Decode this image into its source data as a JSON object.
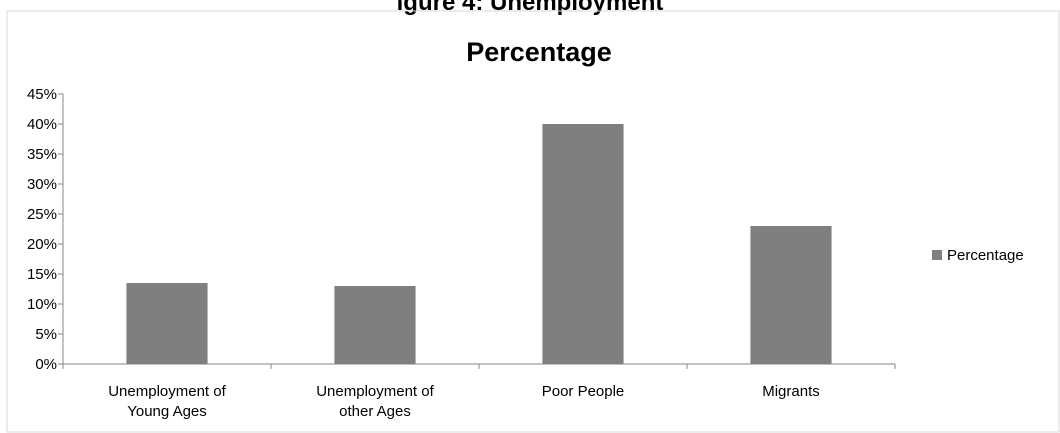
{
  "top_caption": "igure 4: Unemployment",
  "chart_data": {
    "type": "bar",
    "title": "Percentage",
    "categories": [
      [
        "Unemployment of",
        "Young Ages"
      ],
      [
        "Unemployment of",
        "other Ages"
      ],
      [
        "Poor People"
      ],
      [
        "Migrants"
      ]
    ],
    "series": [
      {
        "name": "Percentage",
        "values": [
          13.5,
          13,
          40,
          23
        ]
      }
    ],
    "ylim": [
      0,
      45
    ],
    "yticks": [
      0,
      5,
      10,
      15,
      20,
      25,
      30,
      35,
      40,
      45
    ],
    "ytick_labels": [
      "0%",
      "5%",
      "10%",
      "15%",
      "20%",
      "25%",
      "30%",
      "35%",
      "40%",
      "45%"
    ],
    "legend_position": "right",
    "grid": false,
    "bar_color": "#7f7f7f"
  }
}
